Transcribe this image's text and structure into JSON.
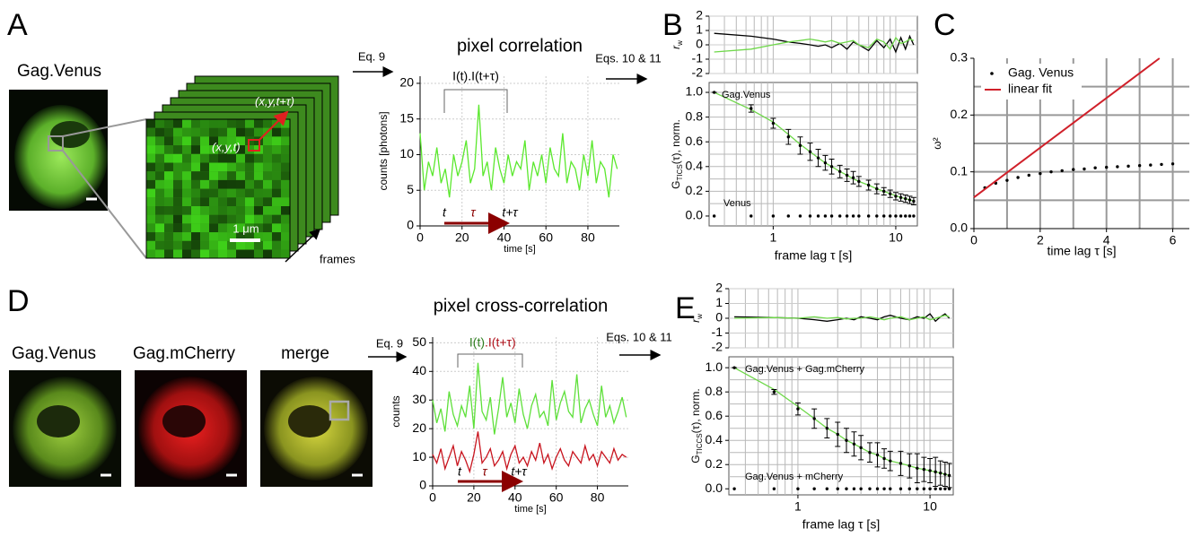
{
  "figure": {
    "letters": [
      "A",
      "B",
      "C",
      "D",
      "E"
    ],
    "panel_a": {
      "label": "Gag.Venus",
      "eq": "Eq. 9",
      "eqs": "Eqs. 10 & 11",
      "coord_t": "(x,y,t)",
      "coord_tt": "(x,y,t+τ)",
      "scale": "1 μm",
      "frames": "frames"
    },
    "panel_d": {
      "labels": [
        "Gag.Venus",
        "Gag.mCherry",
        "merge"
      ],
      "eq": "Eq. 9",
      "eqs": "Eqs. 10 & 11"
    }
  },
  "chart_data": [
    {
      "type": "line",
      "title": "pixel correlation",
      "xlabel": "time [s]",
      "ylabel": [
        "counts [photons]"
      ],
      "annotations": [
        "I(t).I(t+τ)",
        "t",
        "τ",
        "t+τ"
      ],
      "xlim": [
        0,
        95
      ],
      "ylim": [
        0,
        21
      ],
      "xticks": [
        0,
        20,
        40,
        60,
        80
      ],
      "yticks": [
        0,
        5,
        10,
        15,
        20
      ],
      "grid": true,
      "x": [
        0,
        2,
        4,
        6,
        8,
        10,
        12,
        14,
        16,
        18,
        20,
        22,
        24,
        26,
        28,
        30,
        32,
        34,
        36,
        38,
        40,
        42,
        44,
        46,
        48,
        50,
        52,
        54,
        56,
        58,
        60,
        62,
        64,
        66,
        68,
        70,
        72,
        74,
        76,
        78,
        80,
        82,
        84,
        86,
        88,
        90,
        92,
        94
      ],
      "series": [
        {
          "color": "#5be82e",
          "style": "line",
          "values": [
            13,
            5,
            9,
            7,
            11,
            6,
            8,
            4,
            10,
            7,
            9,
            12,
            6,
            8,
            17,
            7,
            9,
            5,
            11,
            8,
            6,
            10,
            7,
            9,
            8,
            12,
            5,
            9,
            7,
            10,
            6,
            11,
            8,
            7,
            13,
            6,
            9,
            8,
            5,
            10,
            7,
            12,
            6,
            9,
            8,
            4,
            10,
            8
          ]
        }
      ]
    },
    {
      "type": "line",
      "ylabel": [
        "r",
        "w"
      ],
      "xlog": true,
      "xlim": [
        0.3,
        15
      ],
      "ylim": [
        -2,
        2
      ],
      "yticks": [
        -2,
        -1,
        0,
        1,
        2
      ],
      "xgrid": [
        0.4,
        0.5,
        0.6,
        0.7,
        0.8,
        0.9,
        1,
        2,
        3,
        4,
        5,
        6,
        7,
        8,
        9,
        10
      ],
      "grid": true,
      "x": [
        0.33,
        0.66,
        1,
        1.33,
        1.66,
        2,
        2.33,
        2.66,
        3,
        3.5,
        4,
        4.5,
        5,
        6,
        7,
        8,
        9,
        10,
        11,
        12,
        13,
        14
      ],
      "series": [
        {
          "color": "#000000",
          "style": "line",
          "values": [
            0.8,
            0.6,
            0.4,
            0.2,
            0.1,
            0,
            -0.1,
            0,
            -0.2,
            0.1,
            -0.3,
            0.2,
            0,
            -0.4,
            0.3,
            -0.2,
            0.4,
            -0.5,
            0.5,
            -0.3,
            0.6,
            0
          ]
        },
        {
          "color": "#6fd84a",
          "style": "line",
          "values": [
            -0.5,
            -0.3,
            0,
            0.2,
            0.3,
            0.4,
            0.3,
            0.2,
            0.3,
            0.1,
            0.2,
            0.3,
            0,
            -0.2,
            0.4,
            0.2,
            -0.3,
            0.5,
            0.1,
            0.2,
            0.4,
            0.3
          ]
        }
      ]
    },
    {
      "type": "scatter",
      "xlabel": "frame lag τ [s]",
      "ylabel": [
        "G",
        "TICS",
        "(τ), norm."
      ],
      "xlog": true,
      "legend": "inline",
      "xlim": [
        0.3,
        15
      ],
      "ylim": [
        -0.08,
        1.08
      ],
      "xticks": [
        1,
        10
      ],
      "yticks": [
        {
          "value": 0,
          "label": "0.0"
        },
        0.2,
        0.4,
        0.6,
        0.8,
        {
          "value": 1,
          "label": "1.0"
        }
      ],
      "xgrid": [
        0.4,
        0.5,
        0.6,
        0.7,
        0.8,
        0.9,
        1,
        2,
        3,
        4,
        5,
        6,
        7,
        8,
        9,
        10
      ],
      "ygrid": [
        0.1,
        0.2,
        0.3,
        0.4,
        0.5,
        0.6,
        0.7,
        0.8,
        0.9,
        1
      ],
      "x": [
        0.33,
        0.66,
        1,
        1.33,
        1.66,
        2,
        2.33,
        2.66,
        3,
        3.5,
        4,
        4.5,
        5,
        6,
        7,
        8,
        9,
        10,
        11,
        12,
        13,
        14
      ],
      "series": [
        {
          "color": "#6fd84a",
          "style": "line",
          "values": [
            1,
            0.86,
            0.76,
            0.66,
            0.58,
            0.52,
            0.47,
            0.43,
            0.4,
            0.36,
            0.33,
            0.3,
            0.28,
            0.25,
            0.22,
            0.2,
            0.18,
            0.165,
            0.15,
            0.14,
            0.13,
            0.12
          ]
        },
        {
          "name": "Gag.Venus",
          "color": "#000000",
          "style": "dots",
          "values": [
            1,
            0.87,
            0.75,
            0.64,
            0.57,
            0.52,
            0.47,
            0.43,
            0.4,
            0.36,
            0.33,
            0.31,
            0.28,
            0.25,
            0.22,
            0.2,
            0.18,
            0.16,
            0.15,
            0.14,
            0.13,
            0.12
          ],
          "errors": [
            0,
            0.03,
            0.04,
            0.06,
            0.07,
            0.07,
            0.07,
            0.06,
            0.06,
            0.05,
            0.05,
            0.05,
            0.04,
            0.04,
            0.04,
            0.03,
            0.03,
            0.03,
            0.03,
            0.03,
            0.03,
            0.03
          ]
        },
        {
          "name": "Venus",
          "color": "#000000",
          "style": "dots",
          "values": [
            0,
            0,
            0,
            0,
            0,
            0,
            0,
            0,
            0,
            0,
            0,
            0,
            0,
            0,
            0,
            0,
            0,
            0,
            0,
            0,
            0,
            0
          ]
        }
      ]
    },
    {
      "type": "scatter",
      "xlabel": "time lag τ [s]",
      "ylabel": [
        "ω²"
      ],
      "legend": "upper left",
      "xlim": [
        0,
        6.5
      ],
      "ylim": [
        0,
        0.3
      ],
      "xticks": [
        0,
        2,
        4,
        6
      ],
      "yticks": [
        {
          "value": 0,
          "label": "0.0"
        },
        0.1,
        0.2,
        0.3
      ],
      "xgrid": [
        1,
        2,
        3,
        4,
        5,
        6
      ],
      "ygrid": [
        0.05,
        0.1,
        0.15,
        0.2,
        0.25
      ],
      "series": [
        {
          "name": "Gag. Venus",
          "color": "#000000",
          "style": "dots",
          "x": [
            0.33,
            0.66,
            1,
            1.33,
            1.66,
            2,
            2.33,
            2.66,
            3,
            3.33,
            3.66,
            4,
            4.33,
            4.66,
            5,
            5.33,
            5.66,
            6
          ],
          "values": [
            0.072,
            0.08,
            0.085,
            0.09,
            0.094,
            0.097,
            0.1,
            0.102,
            0.104,
            0.105,
            0.107,
            0.108,
            0.109,
            0.11,
            0.111,
            0.112,
            0.113,
            0.114
          ]
        },
        {
          "name": "linear fit",
          "color": "#d0202a",
          "style": "line",
          "x": [
            0,
            5.6
          ],
          "values": [
            0.055,
            0.3
          ]
        }
      ]
    },
    {
      "type": "line",
      "title": "pixel cross-correlation",
      "xlabel": "time [s]",
      "ylabel": [
        "counts"
      ],
      "annotations": [
        "I(t)",
        ".I(t+τ)",
        "t",
        "τ",
        "t+τ"
      ],
      "xlim": [
        0,
        95
      ],
      "ylim": [
        0,
        52
      ],
      "xticks": [
        0,
        20,
        40,
        60,
        80
      ],
      "yticks": [
        0,
        10,
        20,
        30,
        40,
        50
      ],
      "grid": true,
      "x": [
        0,
        2,
        4,
        6,
        8,
        10,
        12,
        14,
        16,
        18,
        20,
        22,
        24,
        26,
        28,
        30,
        32,
        34,
        36,
        38,
        40,
        42,
        44,
        46,
        48,
        50,
        52,
        54,
        56,
        58,
        60,
        62,
        64,
        66,
        68,
        70,
        72,
        74,
        76,
        78,
        80,
        82,
        84,
        86,
        88,
        90,
        92,
        94
      ],
      "series": [
        {
          "color": "#5ee03a",
          "style": "line",
          "values": [
            30,
            22,
            27,
            19,
            33,
            25,
            21,
            28,
            24,
            35,
            20,
            43,
            26,
            23,
            31,
            18,
            27,
            38,
            24,
            29,
            22,
            34,
            25,
            20,
            28,
            32,
            24,
            26,
            21,
            37,
            23,
            29,
            33,
            26,
            24,
            39,
            22,
            27,
            30,
            25,
            21,
            35,
            24,
            28,
            22,
            26,
            31,
            24
          ]
        },
        {
          "color": "#c8141e",
          "style": "line",
          "values": [
            11,
            8,
            13,
            6,
            10,
            14,
            7,
            12,
            9,
            5,
            11,
            19,
            8,
            10,
            13,
            7,
            9,
            12,
            6,
            11,
            14,
            8,
            10,
            7,
            12,
            9,
            15,
            8,
            11,
            6,
            10,
            13,
            9,
            7,
            12,
            10,
            8,
            14,
            9,
            11,
            7,
            12,
            10,
            8,
            13,
            9,
            11,
            10
          ]
        }
      ]
    },
    {
      "type": "line",
      "ylabel": [
        "r",
        "w"
      ],
      "xlog": true,
      "xlim": [
        0.3,
        15
      ],
      "ylim": [
        -2,
        2
      ],
      "yticks": [
        -2,
        -1,
        0,
        1,
        2
      ],
      "xgrid": [
        0.4,
        0.5,
        0.6,
        0.7,
        0.8,
        0.9,
        1,
        2,
        3,
        4,
        5,
        6,
        7,
        8,
        9,
        10
      ],
      "grid": true,
      "x": [
        0.33,
        0.66,
        1,
        1.33,
        1.66,
        2,
        2.33,
        2.66,
        3,
        3.5,
        4,
        4.5,
        5,
        6,
        7,
        8,
        9,
        10,
        11,
        12,
        13,
        14
      ],
      "series": [
        {
          "color": "#000000",
          "style": "line",
          "values": [
            0.1,
            0.05,
            0,
            -0.1,
            -0.2,
            -0.1,
            0,
            -0.1,
            0.1,
            0,
            -0.1,
            0.1,
            0.2,
            0,
            -0.1,
            0.1,
            0,
            0.3,
            -0.2,
            0.1,
            0.3,
            0
          ]
        },
        {
          "color": "#6fd84a",
          "style": "line",
          "values": [
            0,
            0.05,
            0,
            0.1,
            0,
            0.05,
            -0.05,
            0,
            0,
            0.1,
            0,
            -0.1,
            0,
            0.1,
            -0.1,
            0,
            0.1,
            -0.1,
            0,
            0.1,
            0.2,
            0.1
          ]
        }
      ]
    },
    {
      "type": "scatter",
      "xlabel": "frame lag τ [s]",
      "ylabel": [
        "G",
        "TICCS",
        "(τ), norm."
      ],
      "xlog": true,
      "legend": "inline",
      "xlim": [
        0.3,
        15
      ],
      "ylim": [
        -0.05,
        1.09
      ],
      "xticks": [
        1,
        10
      ],
      "yticks": [
        {
          "value": 0,
          "label": "0.0"
        },
        0.2,
        0.4,
        0.6,
        0.8,
        {
          "value": 1,
          "label": "1.0"
        }
      ],
      "xgrid": [
        0.4,
        0.5,
        0.6,
        0.7,
        0.8,
        0.9,
        1,
        2,
        3,
        4,
        5,
        6,
        7,
        8,
        9,
        10
      ],
      "ygrid": [
        0.1,
        0.2,
        0.3,
        0.4,
        0.5,
        0.6,
        0.7,
        0.8,
        0.9,
        1
      ],
      "x": [
        0.33,
        0.66,
        1,
        1.33,
        1.66,
        2,
        2.33,
        2.66,
        3,
        3.5,
        4,
        4.5,
        5,
        6,
        7,
        8,
        9,
        10,
        11,
        12,
        13,
        14
      ],
      "series": [
        {
          "color": "#6fd84a",
          "style": "line",
          "values": [
            1,
            0.82,
            0.68,
            0.58,
            0.5,
            0.45,
            0.4,
            0.37,
            0.34,
            0.3,
            0.28,
            0.25,
            0.23,
            0.21,
            0.19,
            0.17,
            0.16,
            0.15,
            0.14,
            0.13,
            0.12,
            0.11
          ]
        },
        {
          "name": "Gag.Venus + Gag.mCherry",
          "color": "#000000",
          "style": "dots",
          "values": [
            1,
            0.8,
            0.66,
            0.58,
            0.5,
            0.45,
            0.4,
            0.37,
            0.34,
            0.3,
            0.28,
            0.25,
            0.23,
            0.21,
            0.19,
            0.17,
            0.16,
            0.15,
            0.14,
            0.13,
            0.12,
            0.11
          ],
          "errors": [
            0,
            0.02,
            0.05,
            0.08,
            0.08,
            0.1,
            0.1,
            0.1,
            0.1,
            0.08,
            0.1,
            0.08,
            0.08,
            0.1,
            0.1,
            0.12,
            0.1,
            0.1,
            0.12,
            0.1,
            0.1,
            0.1
          ]
        },
        {
          "name": "Gag.Venus + mCherry",
          "color": "#000000",
          "style": "dots",
          "values": [
            0,
            0,
            0,
            0,
            0,
            0,
            0,
            0,
            0,
            0,
            0,
            0,
            0,
            0,
            0,
            0,
            0,
            0,
            0,
            0,
            0,
            0
          ]
        }
      ]
    }
  ]
}
